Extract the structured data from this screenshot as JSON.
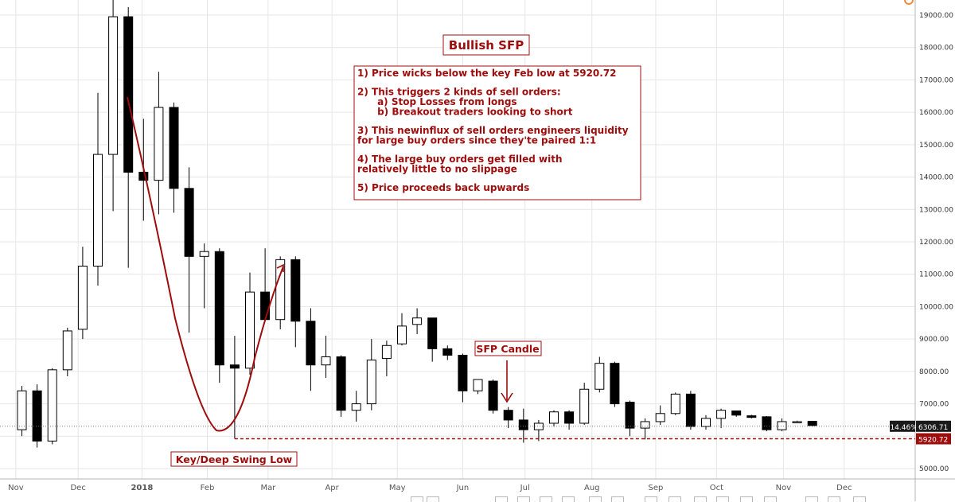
{
  "chart_data": {
    "type": "candlestick",
    "interval": "1W",
    "title": "Bullish SFP",
    "y_axis": {
      "ylim": [
        4800,
        19500
      ],
      "ticks": [
        5000,
        6000,
        7000,
        8000,
        9000,
        10000,
        11000,
        12000,
        13000,
        14000,
        15000,
        16000,
        17000,
        18000,
        19000
      ],
      "tick_labels": [
        "5000.00",
        "6000.00",
        "7000.00",
        "8000.00",
        "9000.00",
        "10000.00",
        "11000.00",
        "12000.00",
        "13000.00",
        "14000.00",
        "15000.00",
        "16000.00",
        "17000.00",
        "18000.00",
        "19000.00"
      ]
    },
    "x_axis": {
      "labels": [
        {
          "label": "Nov",
          "week": -0.4,
          "bold": false
        },
        {
          "label": "Dec",
          "week": 3.7,
          "bold": false
        },
        {
          "label": "2018",
          "week": 7.9,
          "bold": true
        },
        {
          "label": "Feb",
          "week": 12.2,
          "bold": false
        },
        {
          "label": "Mar",
          "week": 16.2,
          "bold": false
        },
        {
          "label": "Apr",
          "week": 20.4,
          "bold": false
        },
        {
          "label": "May",
          "week": 24.7,
          "bold": false
        },
        {
          "label": "Jun",
          "week": 29.0,
          "bold": false
        },
        {
          "label": "Jul",
          "week": 33.1,
          "bold": false
        },
        {
          "label": "Aug",
          "week": 37.5,
          "bold": false
        },
        {
          "label": "Sep",
          "week": 41.7,
          "bold": false
        },
        {
          "label": "Oct",
          "week": 45.7,
          "bold": false
        },
        {
          "label": "Nov",
          "week": 50.1,
          "bold": false
        },
        {
          "label": "Dec",
          "week": 54.1,
          "bold": false
        }
      ]
    },
    "candles": [
      {
        "o": 6200,
        "h": 7550,
        "l": 6000,
        "c": 7400
      },
      {
        "o": 7400,
        "h": 7600,
        "l": 5650,
        "c": 5850
      },
      {
        "o": 5850,
        "h": 8100,
        "l": 5750,
        "c": 8050
      },
      {
        "o": 8050,
        "h": 9350,
        "l": 7850,
        "c": 9250
      },
      {
        "o": 9300,
        "h": 11850,
        "l": 9000,
        "c": 11250
      },
      {
        "o": 11250,
        "h": 16600,
        "l": 10650,
        "c": 14700
      },
      {
        "o": 14700,
        "h": 19650,
        "l": 12950,
        "c": 18950
      },
      {
        "o": 18950,
        "h": 19250,
        "l": 11200,
        "c": 14150
      },
      {
        "o": 14150,
        "h": 15800,
        "l": 12650,
        "c": 13900
      },
      {
        "o": 13900,
        "h": 17250,
        "l": 12850,
        "c": 16150
      },
      {
        "o": 16150,
        "h": 16300,
        "l": 12900,
        "c": 13650
      },
      {
        "o": 13650,
        "h": 14300,
        "l": 9200,
        "c": 11550
      },
      {
        "o": 11550,
        "h": 11950,
        "l": 9950,
        "c": 11700
      },
      {
        "o": 11700,
        "h": 11800,
        "l": 7650,
        "c": 8200
      },
      {
        "o": 8200,
        "h": 9100,
        "l": 5920.72,
        "c": 8100
      },
      {
        "o": 8100,
        "h": 11050,
        "l": 7900,
        "c": 10450
      },
      {
        "o": 10450,
        "h": 11800,
        "l": 9600,
        "c": 9600
      },
      {
        "o": 9600,
        "h": 11550,
        "l": 9300,
        "c": 11450
      },
      {
        "o": 11450,
        "h": 11550,
        "l": 8750,
        "c": 9550
      },
      {
        "o": 9550,
        "h": 9950,
        "l": 7400,
        "c": 8200
      },
      {
        "o": 8200,
        "h": 9100,
        "l": 7800,
        "c": 8450
      },
      {
        "o": 8450,
        "h": 8500,
        "l": 6600,
        "c": 6800
      },
      {
        "o": 6800,
        "h": 7400,
        "l": 6450,
        "c": 7000
      },
      {
        "o": 7000,
        "h": 9000,
        "l": 6800,
        "c": 8350
      },
      {
        "o": 8400,
        "h": 8950,
        "l": 7850,
        "c": 8800
      },
      {
        "o": 8850,
        "h": 9800,
        "l": 8800,
        "c": 9400
      },
      {
        "o": 9450,
        "h": 9950,
        "l": 9150,
        "c": 9650
      },
      {
        "o": 9650,
        "h": 9650,
        "l": 8300,
        "c": 8700
      },
      {
        "o": 8700,
        "h": 8800,
        "l": 8350,
        "c": 8500
      },
      {
        "o": 8500,
        "h": 8550,
        "l": 7050,
        "c": 7400
      },
      {
        "o": 7400,
        "h": 7750,
        "l": 7300,
        "c": 7750
      },
      {
        "o": 7700,
        "h": 7750,
        "l": 6700,
        "c": 6800
      },
      {
        "o": 6800,
        "h": 6900,
        "l": 6250,
        "c": 6500
      },
      {
        "o": 6500,
        "h": 6850,
        "l": 5800,
        "c": 6200
      },
      {
        "o": 6200,
        "h": 6500,
        "l": 5850,
        "c": 6400
      },
      {
        "o": 6400,
        "h": 6800,
        "l": 6300,
        "c": 6750
      },
      {
        "o": 6750,
        "h": 6800,
        "l": 6200,
        "c": 6400
      },
      {
        "o": 6400,
        "h": 7650,
        "l": 6350,
        "c": 7450
      },
      {
        "o": 7450,
        "h": 8450,
        "l": 7350,
        "c": 8250
      },
      {
        "o": 8250,
        "h": 8300,
        "l": 6900,
        "c": 7000
      },
      {
        "o": 7050,
        "h": 7100,
        "l": 6000,
        "c": 6250
      },
      {
        "o": 6250,
        "h": 6550,
        "l": 5900,
        "c": 6450
      },
      {
        "o": 6450,
        "h": 6950,
        "l": 6350,
        "c": 6700
      },
      {
        "o": 6700,
        "h": 7350,
        "l": 6650,
        "c": 7300
      },
      {
        "o": 7300,
        "h": 7400,
        "l": 6200,
        "c": 6300
      },
      {
        "o": 6300,
        "h": 6650,
        "l": 6200,
        "c": 6550
      },
      {
        "o": 6550,
        "h": 6850,
        "l": 6250,
        "c": 6800
      },
      {
        "o": 6780,
        "h": 6790,
        "l": 6600,
        "c": 6650
      },
      {
        "o": 6630,
        "h": 6660,
        "l": 6550,
        "c": 6580
      },
      {
        "o": 6600,
        "h": 6620,
        "l": 6150,
        "c": 6200
      },
      {
        "o": 6200,
        "h": 6550,
        "l": 6150,
        "c": 6450
      },
      {
        "o": 6430,
        "h": 6480,
        "l": 6400,
        "c": 6450
      },
      {
        "o": 6460,
        "h": 6470,
        "l": 6300,
        "c": 6330
      }
    ],
    "key_level": {
      "value": 5920.72,
      "label": "5920.72"
    },
    "last_price": {
      "value": 6306.71,
      "label": "6306.71",
      "change_label": "-14.46%"
    },
    "annotations": {
      "heading": "Bullish SFP",
      "steps": [
        "1) Price wicks below the key Feb low at 5920.72",
        "",
        "2) This triggers 2 kinds of sell orders:",
        "      a) Stop Losses from longs",
        "      b) Breakout traders looking to short",
        "",
        "3) This newinflux of sell orders engineers liquidity",
        "for large buy orders since they'te paired 1:1",
        "",
        "4) The large buy orders get filled with",
        "relatively little to no slippage",
        "",
        "5) Price proceeds back upwards"
      ],
      "sfp_candle_label": "SFP Candle",
      "swing_low_label": "Key/Deep Swing Low"
    },
    "colors": {
      "annotation": "#9e0c0c",
      "bear_candle": "#000000",
      "bull_candle": "#ffffff",
      "candle_outline": "#000000",
      "grid": "#e6e6e6"
    },
    "grid": true
  }
}
